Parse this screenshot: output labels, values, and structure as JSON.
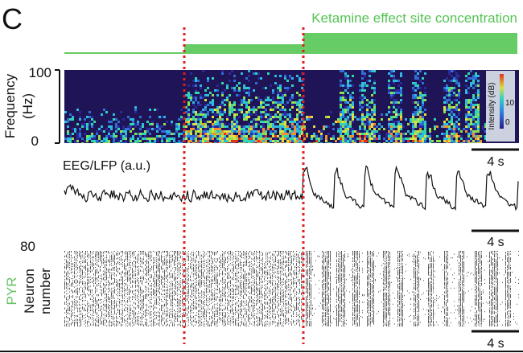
{
  "panel_letter": "C",
  "ketamine_label": "Ketamine effect site concentration",
  "spectrogram": {
    "ylabel_line1": "Frequency",
    "ylabel_line2": "(Hz)",
    "ytick_max": "100",
    "ytick_min": "0",
    "colorbar_label": "Intensity (dB)",
    "colorbar_tick_high": "10",
    "colorbar_tick_low": "0"
  },
  "eeg": {
    "label": "EEG/LFP (a.u.)"
  },
  "raster": {
    "ytick_max": "80",
    "ylabel_line1": "Neuron",
    "ylabel_line2": "number",
    "cell_type": "PYR"
  },
  "scale_bar_label": "4 s",
  "colors": {
    "ketamine_green": "#66cc66",
    "marker_red": "#e11d1d",
    "pyr_green": "#66c266",
    "spectrogram_bg": "#1e1456"
  }
}
